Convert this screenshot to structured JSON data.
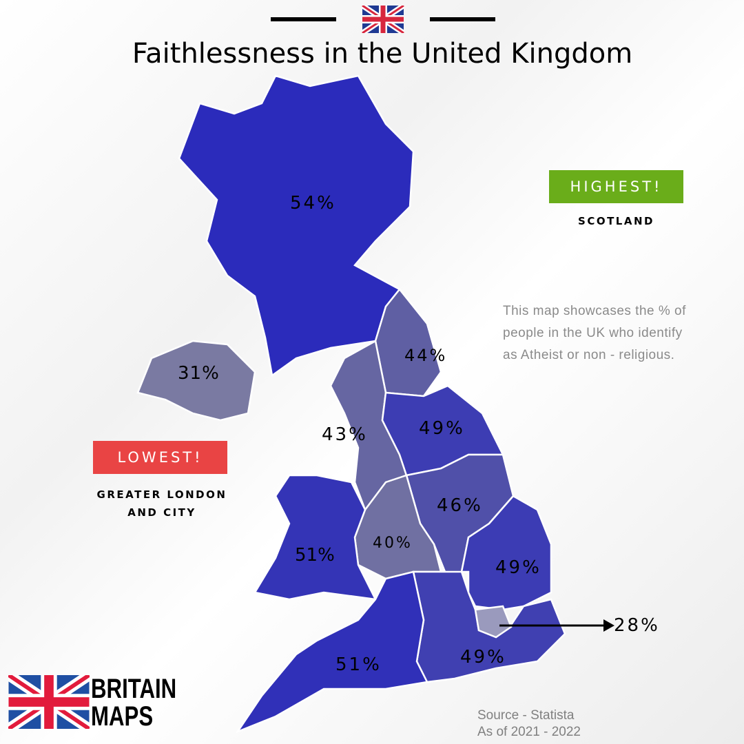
{
  "header": {
    "title": "Faithlessness in the United Kingdom",
    "flag_icon": "uk-flag-icon"
  },
  "regions": [
    {
      "name": "Scotland",
      "value": "54%",
      "color": "#2b2bbb"
    },
    {
      "name": "North East",
      "value": "44%",
      "color": "#5f5fa3"
    },
    {
      "name": "North West",
      "value": "43%",
      "color": "#6666a2"
    },
    {
      "name": "Yorkshire and the Humber",
      "value": "49%",
      "color": "#3d3db3"
    },
    {
      "name": "East Midlands",
      "value": "46%",
      "color": "#5050a9"
    },
    {
      "name": "West Midlands",
      "value": "40%",
      "color": "#7070a2"
    },
    {
      "name": "Wales",
      "value": "51%",
      "color": "#3434b6"
    },
    {
      "name": "East of England",
      "value": "49%",
      "color": "#3c3cb4"
    },
    {
      "name": "Greater London",
      "value": "28%",
      "color": "#9a9abd"
    },
    {
      "name": "South East",
      "value": "49%",
      "color": "#4040b1"
    },
    {
      "name": "South West",
      "value": "51%",
      "color": "#3030b8"
    },
    {
      "name": "Northern Ireland",
      "value": "31%",
      "color": "#7a7aa2"
    }
  ],
  "highest": {
    "badge": "HIGHEST!",
    "region": "SCOTLAND",
    "color": "#6aad1a"
  },
  "lowest": {
    "badge": "LOWEST!",
    "region_line1": "GREATER LONDON",
    "region_line2": "AND CITY",
    "color": "#e94444"
  },
  "description": "This map showcases the % of people in the UK who identify as Atheist or non - religious.",
  "source": {
    "line1": "Source - Statista",
    "line2": "As of 2021 - 2022"
  },
  "brand": {
    "line1": "BRITAIN",
    "line2": "MAPS"
  }
}
